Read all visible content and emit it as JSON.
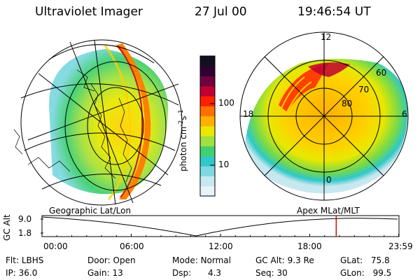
{
  "header": {
    "instrument": "Ultraviolet Imager",
    "date": "27 Jul 00",
    "time": "19:46:54 UT"
  },
  "colorbar": {
    "label_prefix": "photon cm",
    "exp1": "-2",
    "mid": "s",
    "exp2": "-1",
    "ticks": [
      {
        "label": "100",
        "value": 100
      },
      {
        "label": "10",
        "value": 10
      }
    ],
    "colors": [
      "#e8f4f8",
      "#c8e8f0",
      "#80d8e0",
      "#30c8c8",
      "#40d070",
      "#a0e040",
      "#e8e800",
      "#ffb000",
      "#ff7000",
      "#ff2000",
      "#c00030",
      "#700040",
      "#300030",
      "#101020"
    ]
  },
  "polar_plot": {
    "mlt_labels": [
      {
        "label": "12",
        "mlt": 12
      },
      {
        "label": "18",
        "mlt": 18
      },
      {
        "label": "6",
        "mlt": 6
      },
      {
        "label": "0",
        "mlt": 0
      }
    ],
    "lat_labels": [
      {
        "label": "60",
        "lat": 60
      },
      {
        "label": "70",
        "lat": 70
      },
      {
        "label": "80",
        "lat": 80
      }
    ]
  },
  "strip": {
    "left_caption": "Geographic Lat/Lon",
    "right_caption": "Apex MLat/MLT",
    "y_axis_label": "GC Alt",
    "y_ticks": [
      {
        "label": "9.0",
        "value": 9.0
      },
      {
        "label": "1.8",
        "value": 1.8
      }
    ],
    "x_ticks": [
      {
        "label": "00:00",
        "hour": 0
      },
      {
        "label": "06:00",
        "hour": 6
      },
      {
        "label": "12:00",
        "hour": 12
      },
      {
        "label": "18:00",
        "hour": 18
      },
      {
        "label": "23:59",
        "hour": 23.98
      }
    ],
    "current_hour": 19.78,
    "marker_color": "#e00000"
  },
  "info": {
    "flt_label": "Flt:",
    "flt_value": "LBHS",
    "ip_label": "IP:",
    "ip_value": "36.0",
    "door_label": "Door:",
    "door_value": "Open",
    "gain_label": "Gain:",
    "gain_value": "13",
    "mode_label": "Mode:",
    "mode_value": "Normal",
    "dsp_label": "Dsp:",
    "dsp_value": "4.3",
    "gcalt_label": "GC Alt:",
    "gcalt_value": "9.3 Re",
    "seq_label": "Seq:",
    "seq_value": "30",
    "glat_label": "GLat:",
    "glat_value": "75.8",
    "glon_label": "GLon:",
    "glon_value": "99.5"
  }
}
